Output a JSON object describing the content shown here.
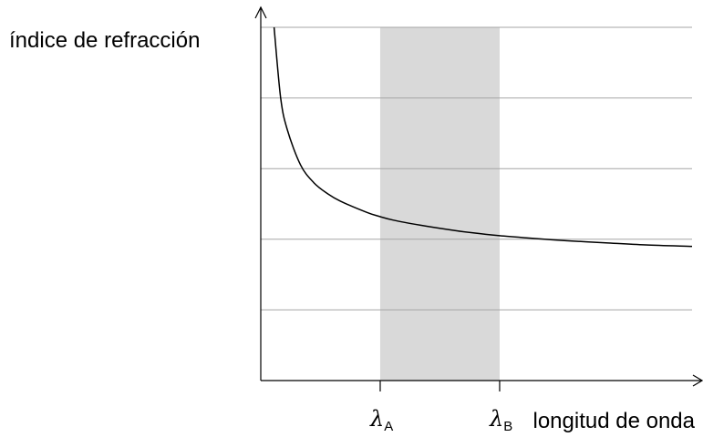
{
  "chart_data": {
    "type": "line",
    "ylabel": "índice de refracción",
    "xlabel": "longitud de onda",
    "x_ticks": [
      {
        "symbol": "λ",
        "subscript": "A",
        "x": 0.9
      },
      {
        "symbol": "λ",
        "subscript": "B",
        "x": 1.8
      }
    ],
    "shaded_band": {
      "from": 0.9,
      "to": 1.8,
      "color": "#d9d9d9"
    },
    "xlim": [
      0,
      3.25
    ],
    "ylim": [
      0,
      5
    ],
    "grid": "horizontal",
    "gridlines_y": [
      1,
      2,
      3,
      4,
      5
    ],
    "series": [
      {
        "color": "#000000",
        "x": [
          0.1,
          0.15,
          0.2,
          0.3,
          0.4,
          0.5,
          0.6,
          0.8,
          0.9,
          1.0,
          1.2,
          1.4,
          1.6,
          1.8,
          2.0,
          2.3,
          2.6,
          2.9,
          3.25
        ],
        "y": [
          5.0,
          4.0,
          3.55,
          3.05,
          2.8,
          2.65,
          2.54,
          2.38,
          2.32,
          2.27,
          2.2,
          2.14,
          2.09,
          2.05,
          2.02,
          1.98,
          1.95,
          1.92,
          1.9
        ]
      }
    ]
  }
}
